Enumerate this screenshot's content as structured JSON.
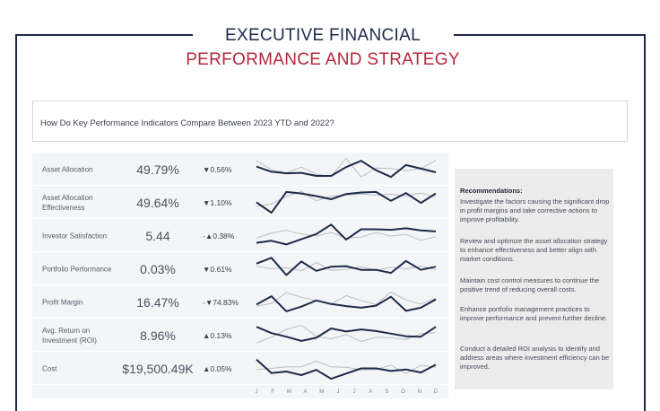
{
  "header": {
    "title_line1": "EXECUTIVE FINANCIAL",
    "title_line2": "PERFORMANCE AND STRATEGY"
  },
  "question": "How Do Key Performance Indicators Compare Between 2023 YTD and 2022?",
  "colors": {
    "navy": "#1e2a4a",
    "accent_red": "#b8253a",
    "line_2023": "#1e2a4a",
    "line_2022": "#b9bdc6"
  },
  "kpis": [
    {
      "label": "Asset Allocation",
      "value": "49.79%",
      "change": "▼0.56%",
      "s2023": [
        0.6,
        0.4,
        0.34,
        0.36,
        0.24,
        0.24,
        0.58,
        0.82,
        0.46,
        0.2,
        0.66,
        0.52,
        0.38
      ],
      "s2022": [
        0.82,
        0.48,
        0.36,
        0.58,
        0.3,
        0.22,
        0.92,
        0.2,
        0.54,
        0.52,
        0.44,
        0.52,
        0.84
      ]
    },
    {
      "label": "Asset Allocation Effectiveness",
      "value": "49.64%",
      "change": "▼1.10%",
      "s2023": [
        0.5,
        0.1,
        0.9,
        0.84,
        0.74,
        0.62,
        0.82,
        0.88,
        0.9,
        0.56,
        0.86,
        0.48,
        0.84
      ],
      "s2022": [
        0.34,
        0.44,
        0.72,
        0.92,
        0.56,
        0.74,
        0.78,
        0.82,
        0.78,
        0.82,
        0.74,
        0.86,
        0.7
      ]
    },
    {
      "label": "Investor Satisfaction",
      "value": "5.44",
      "change": "-▲0.38%",
      "s2023": [
        0.22,
        0.3,
        0.16,
        0.36,
        0.56,
        0.92,
        0.34,
        0.74,
        0.74,
        0.72,
        0.78,
        0.7,
        0.66
      ],
      "s2022": [
        0.4,
        0.6,
        0.7,
        0.56,
        0.48,
        0.62,
        0.4,
        0.44,
        0.62,
        0.48,
        0.54,
        0.32,
        0.46
      ]
    },
    {
      "label": "Portfolio Performance",
      "value": "0.03%",
      "change": "▼0.61%",
      "s2023": [
        0.7,
        0.92,
        0.26,
        0.78,
        0.42,
        0.58,
        0.6,
        0.46,
        0.46,
        0.34,
        0.8,
        0.46,
        0.58
      ],
      "s2022": [
        0.6,
        0.5,
        0.54,
        0.42,
        0.74,
        0.44,
        0.48,
        0.58,
        0.44,
        0.56,
        0.5,
        0.6,
        0.46
      ]
    },
    {
      "label": "Profit Margin",
      "value": "16.47%",
      "change": "-▼74.83%",
      "s2023": [
        0.4,
        0.72,
        0.14,
        0.32,
        0.56,
        0.42,
        0.34,
        0.28,
        0.36,
        0.7,
        0.16,
        0.28,
        0.6
      ],
      "s2022": [
        0.34,
        0.44,
        0.86,
        0.68,
        0.56,
        0.42,
        0.74,
        0.56,
        0.4,
        0.88,
        0.58,
        0.42,
        0.64
      ]
    },
    {
      "label": "Avg. Return on Investment (ROI)",
      "value": "8.96%",
      "change": "▲0.13%",
      "s2023": [
        0.82,
        0.58,
        0.44,
        0.28,
        0.4,
        0.76,
        0.64,
        0.72,
        0.66,
        0.56,
        0.46,
        0.44,
        0.82
      ],
      "s2022": [
        0.2,
        0.42,
        0.72,
        0.88,
        0.46,
        0.36,
        0.52,
        0.26,
        0.42,
        0.4,
        0.34,
        0.56,
        0.6
      ]
    },
    {
      "label": "Cost",
      "value": "$19,500.49K",
      "change": "▲0.05%",
      "s2023": [
        0.84,
        0.32,
        0.38,
        0.24,
        0.44,
        0.1,
        0.3,
        0.5,
        0.5,
        0.4,
        0.46,
        0.34,
        0.64
      ],
      "s2022": [
        0.46,
        0.5,
        0.56,
        0.56,
        0.78,
        0.56,
        0.54,
        0.44,
        0.46,
        0.62,
        0.3,
        0.62,
        0.54
      ]
    }
  ],
  "months": [
    "J",
    "F",
    "M",
    "A",
    "M",
    "J",
    "J",
    "A",
    "S",
    "O",
    "N",
    "D"
  ],
  "recommendations": {
    "title": "Recommendations:",
    "items": [
      "Investigate the factors causing the significant drop in profit margins and take corrective actions to improve profitability.",
      "Review and optimize the asset allocation strategy to enhance effectiveness and better align with market conditions.",
      "Maintain cost control measures to continue the positive trend of reducing overall costs.",
      "Enhance portfolio management practices to improve performance and prevent further decline.",
      "Conduct a detailed ROI analysis to identify and address areas where investment efficiency can be improved."
    ]
  }
}
